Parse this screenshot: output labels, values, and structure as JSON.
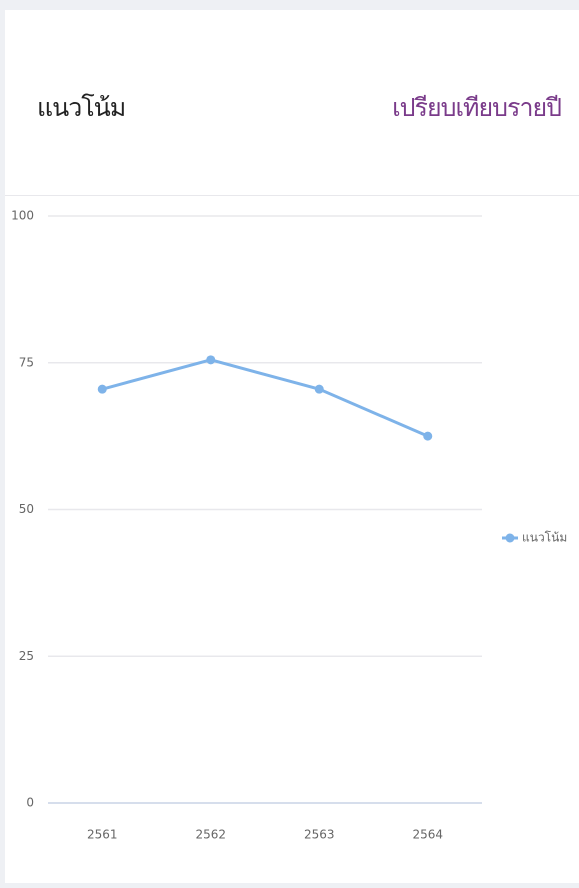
{
  "chart_data": {
    "type": "line",
    "title": "แนวโน้ม",
    "subtitle": "เปรียบเทียบรายปี",
    "categories": [
      "2561",
      "2562",
      "2563",
      "2564"
    ],
    "series": [
      {
        "name": "แนวโน้ม",
        "color": "#7eb3e9",
        "values": [
          70.5,
          75.5,
          70.5,
          62.5
        ]
      }
    ],
    "ylim": [
      0,
      100
    ],
    "yticks": [
      0,
      25,
      50,
      75,
      100
    ],
    "grid": true,
    "legend": "right"
  }
}
